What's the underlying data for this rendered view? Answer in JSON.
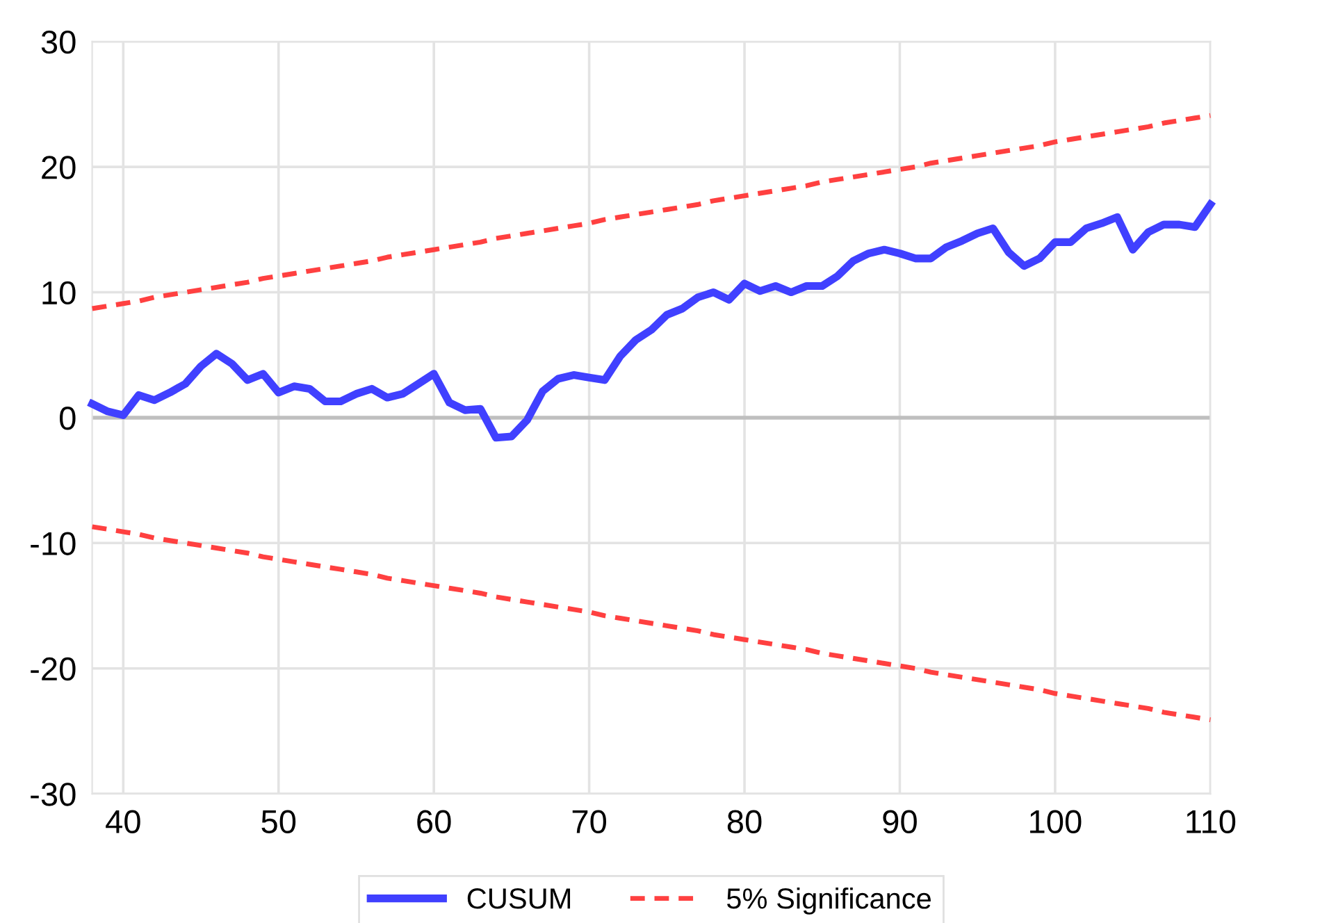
{
  "chart_data": {
    "type": "line",
    "x": [
      38,
      39,
      40,
      41,
      42,
      43,
      44,
      45,
      46,
      47,
      48,
      49,
      50,
      51,
      52,
      53,
      54,
      55,
      56,
      57,
      58,
      59,
      60,
      61,
      62,
      63,
      64,
      65,
      66,
      67,
      68,
      69,
      70,
      71,
      72,
      73,
      74,
      75,
      76,
      77,
      78,
      79,
      80,
      81,
      82,
      83,
      84,
      85,
      86,
      87,
      88,
      89,
      90,
      91,
      92,
      93,
      94,
      95,
      96,
      97,
      98,
      99,
      100,
      101,
      102,
      103,
      104,
      105,
      106,
      107,
      108,
      109,
      110
    ],
    "series": [
      {
        "name": "CUSUM",
        "color": "#4040ff",
        "line_style": "solid",
        "values": [
          1.1,
          0.5,
          0.2,
          1.8,
          1.4,
          2.0,
          2.7,
          4.1,
          5.1,
          4.3,
          3.0,
          3.5,
          2.0,
          2.5,
          2.3,
          1.3,
          1.3,
          1.9,
          2.3,
          1.6,
          1.9,
          2.7,
          3.5,
          1.2,
          0.6,
          0.7,
          -1.6,
          -1.5,
          -0.2,
          2.1,
          3.1,
          3.4,
          3.2,
          3.0,
          4.9,
          6.2,
          7.0,
          8.2,
          8.7,
          9.6,
          10.0,
          9.4,
          10.7,
          10.1,
          10.5,
          10.0,
          10.5,
          10.5,
          11.3,
          12.5,
          13.1,
          13.4,
          13.1,
          12.7,
          12.7,
          13.6,
          14.1,
          14.7,
          15.1,
          13.2,
          12.1,
          12.7,
          14.0,
          14.0,
          15.1,
          15.5,
          16.0,
          13.4,
          14.8,
          15.4,
          15.4,
          15.2,
          17.0
        ]
      },
      {
        "name": "5% Significance",
        "color": "#ff4040",
        "line_style": "dashed",
        "values": [
          8.7,
          8.9,
          9.1,
          9.3,
          9.6,
          9.8,
          10.0,
          10.2,
          10.4,
          10.6,
          10.8,
          11.1,
          11.3,
          11.5,
          11.7,
          11.9,
          12.1,
          12.3,
          12.5,
          12.8,
          13.0,
          13.2,
          13.4,
          13.6,
          13.8,
          14.0,
          14.3,
          14.5,
          14.7,
          14.9,
          15.1,
          15.3,
          15.5,
          15.8,
          16.0,
          16.2,
          16.4,
          16.6,
          16.8,
          17.0,
          17.3,
          17.5,
          17.7,
          17.9,
          18.1,
          18.3,
          18.5,
          18.8,
          19.0,
          19.2,
          19.4,
          19.6,
          19.8,
          20.0,
          20.3,
          20.5,
          20.7,
          20.9,
          21.1,
          21.3,
          21.5,
          21.7,
          22.0,
          22.2,
          22.4,
          22.6,
          22.8,
          23.0,
          23.2,
          23.5,
          23.7,
          23.9,
          24.1
        ]
      },
      {
        "color": "#ff4040",
        "line_style": "dashed",
        "values": [
          -8.7,
          -8.9,
          -9.1,
          -9.3,
          -9.6,
          -9.8,
          -10.0,
          -10.2,
          -10.4,
          -10.6,
          -10.8,
          -11.1,
          -11.3,
          -11.5,
          -11.7,
          -11.9,
          -12.1,
          -12.3,
          -12.5,
          -12.8,
          -13.0,
          -13.2,
          -13.4,
          -13.6,
          -13.8,
          -14.0,
          -14.3,
          -14.5,
          -14.7,
          -14.9,
          -15.1,
          -15.3,
          -15.5,
          -15.8,
          -16.0,
          -16.2,
          -16.4,
          -16.6,
          -16.8,
          -17.0,
          -17.3,
          -17.5,
          -17.7,
          -17.9,
          -18.1,
          -18.3,
          -18.5,
          -18.8,
          -19.0,
          -19.2,
          -19.4,
          -19.6,
          -19.8,
          -20.0,
          -20.3,
          -20.5,
          -20.7,
          -20.9,
          -21.1,
          -21.3,
          -21.5,
          -21.7,
          -22.0,
          -22.2,
          -22.4,
          -22.6,
          -22.8,
          -23.0,
          -23.2,
          -23.5,
          -23.7,
          -23.9,
          -24.1
        ]
      }
    ],
    "xlim": [
      38,
      110
    ],
    "xticks": [
      40,
      50,
      60,
      70,
      80,
      90,
      100,
      110
    ],
    "ylim": [
      -30,
      30
    ],
    "yticks": [
      -30,
      -20,
      -10,
      0,
      10,
      20,
      30
    ],
    "ref_lines": [
      {
        "axis": "y",
        "value": 0,
        "color": "#bfbfbf"
      }
    ],
    "grid": true,
    "legend": "bottom",
    "marker": "none"
  }
}
